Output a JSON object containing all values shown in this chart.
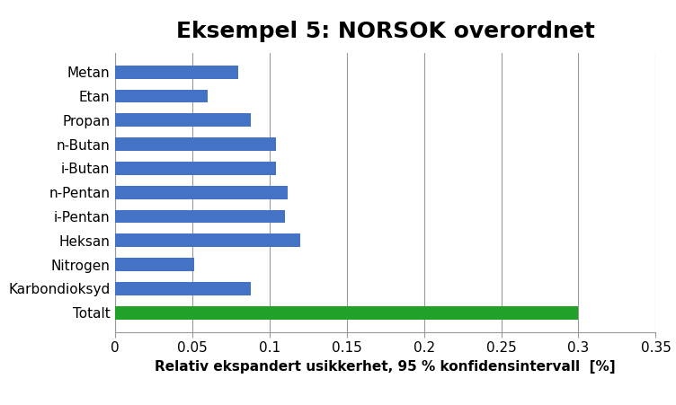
{
  "title": "Eksempel 5: NORSOK overordnet",
  "xlabel": "Relativ ekspandert usikkerhet, 95 % konfidensintervall  [%]",
  "categories": [
    "Totalt",
    "Karbondioksyd",
    "Nitrogen",
    "Heksan",
    "i-Pentan",
    "n-Pentan",
    "i-Butan",
    "n-Butan",
    "Propan",
    "Etan",
    "Metan"
  ],
  "values": [
    0.3,
    0.088,
    0.051,
    0.12,
    0.11,
    0.112,
    0.104,
    0.104,
    0.088,
    0.06,
    0.08
  ],
  "bar_colors": [
    "#21a127",
    "#4472c4",
    "#4472c4",
    "#4472c4",
    "#4472c4",
    "#4472c4",
    "#4472c4",
    "#4472c4",
    "#4472c4",
    "#4472c4",
    "#4472c4"
  ],
  "xlim": [
    0,
    0.35
  ],
  "xticks": [
    0,
    0.05,
    0.1,
    0.15,
    0.2,
    0.25,
    0.3,
    0.35
  ],
  "xtick_labels": [
    "0",
    "0.05",
    "0.1",
    "0.15",
    "0.2",
    "0.25",
    "0.3",
    "0.35"
  ],
  "grid_color": "#999999",
  "title_fontsize": 18,
  "xlabel_fontsize": 11,
  "tick_fontsize": 11,
  "label_fontsize": 11,
  "background_color": "#ffffff",
  "bar_height": 0.55
}
